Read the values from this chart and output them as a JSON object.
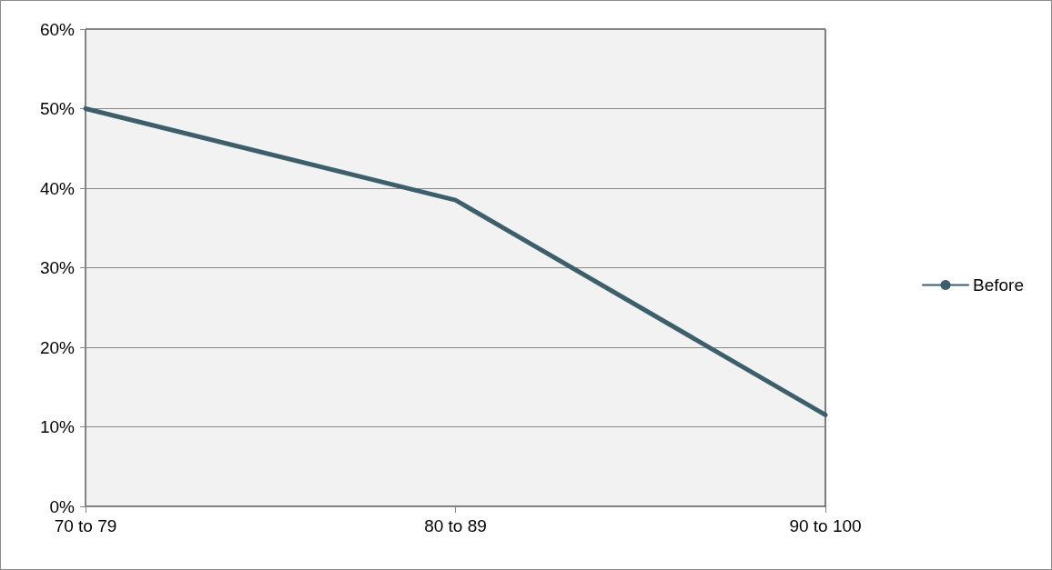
{
  "chart_data": {
    "type": "line",
    "categories": [
      "70 to 79",
      "80 to 89",
      "90 to 100"
    ],
    "series": [
      {
        "name": "Before",
        "color": "#3d5f6b",
        "values": [
          50,
          38.5,
          11.5
        ]
      }
    ],
    "ylim": [
      0,
      60
    ],
    "yticks": [
      {
        "value": 0,
        "label": "0%"
      },
      {
        "value": 10,
        "label": "10%"
      },
      {
        "value": 20,
        "label": "20%"
      },
      {
        "value": 30,
        "label": "30%"
      },
      {
        "value": 40,
        "label": "40%"
      },
      {
        "value": 50,
        "label": "50%"
      },
      {
        "value": 60,
        "label": "60%"
      }
    ],
    "grid": "y",
    "legend": "right",
    "marker": "none",
    "line_style": "solid"
  }
}
